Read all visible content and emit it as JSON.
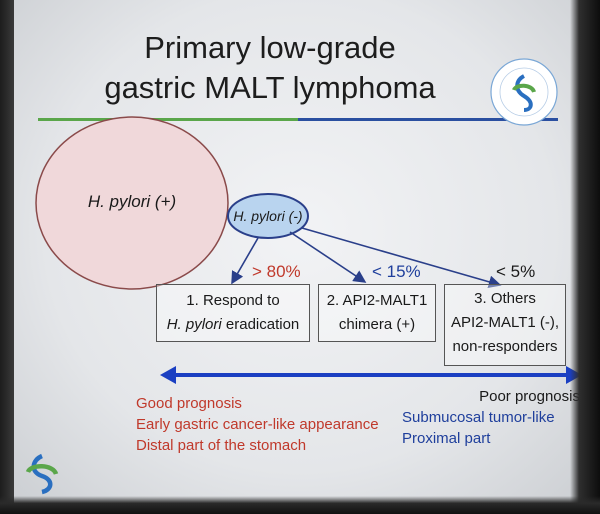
{
  "title": {
    "line1": "Primary low-grade",
    "line2": "gastric MALT lymphoma"
  },
  "nodes": {
    "pylori_pos": "H. pylori (+)",
    "pylori_neg": "H. pylori (-)"
  },
  "branches": [
    {
      "pct": "> 80%",
      "line1": "1. Respond to",
      "line2": "H. pylori eradication"
    },
    {
      "pct": "< 15%",
      "line1": "2. API2-MALT1",
      "line2": "chimera (+)"
    },
    {
      "pct": "< 5%",
      "line1": "3. Others",
      "line2": "API2-MALT1 (-),",
      "line3": "non-responders"
    }
  ],
  "left_notes": [
    "Good prognosis",
    "Early gastric cancer-like appearance",
    "Distal part of the stomach"
  ],
  "right_notes": [
    "Poor prognosis",
    "Submucosal tumor-like",
    "Proximal part"
  ],
  "colors": {
    "red": "#c0392b",
    "blue": "#1f3f9c",
    "arrow": "#1b3fc2",
    "green": "#5aa64a",
    "circle": "#f0d8da"
  }
}
